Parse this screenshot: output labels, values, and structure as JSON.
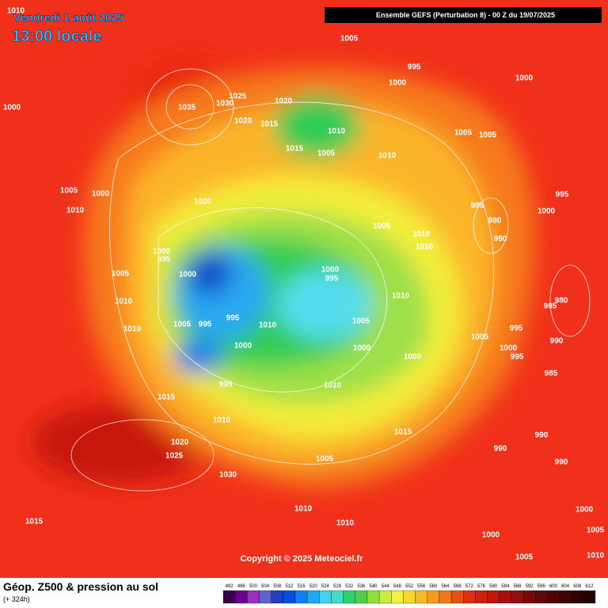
{
  "header": {
    "date": "Vendredi 1 août 2025",
    "time": "13:00 locale",
    "model": "Ensemble GEFS  (Perturbation 8)  -  00 Z du 19/07/2025"
  },
  "copyright": "Copyright © 2025 Meteociel.fr",
  "legend": {
    "title": "Géop. Z500 & pression au sol",
    "lead": "(+ 324h)",
    "labels": [
      492,
      496,
      500,
      504,
      508,
      512,
      516,
      520,
      524,
      528,
      532,
      536,
      540,
      544,
      548,
      552,
      556,
      560,
      564,
      568,
      572,
      576,
      580,
      584,
      588,
      592,
      596,
      600,
      604,
      608,
      612
    ]
  },
  "isobar_labels": [
    1010,
    1005,
    995,
    1000,
    1000,
    1000,
    1035,
    1030,
    1025,
    1020,
    1020,
    1015,
    1010,
    1015,
    1005,
    1010,
    1005,
    1005,
    1005,
    1000,
    1010,
    1020,
    995,
    985,
    980,
    1000,
    1005,
    1010,
    990,
    1010,
    1000,
    995,
    1005,
    1000,
    1000,
    995,
    1010,
    1010,
    980,
    985,
    995,
    1005,
    995,
    1010,
    1005,
    1010,
    995,
    1005,
    1000,
    1000,
    1000,
    990,
    995,
    1000,
    985,
    995,
    1010,
    1015,
    1010,
    1015,
    990,
    990,
    1020,
    1025,
    1005,
    990,
    1030,
    1010,
    1000,
    1015,
    1010,
    1005,
    1000,
    1005,
    1010
  ]
}
